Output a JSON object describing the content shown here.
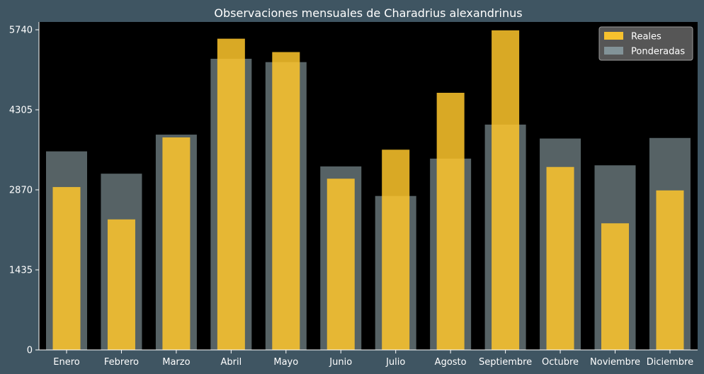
{
  "chart_data": {
    "type": "bar",
    "title": "Observaciones mensuales de Charadrius alexandrinus",
    "xlabel": "",
    "ylabel": "",
    "categories": [
      "Enero",
      "Febrero",
      "Marzo",
      "Abril",
      "Mayo",
      "Junio",
      "Julio",
      "Agosto",
      "Septiembre",
      "Octubre",
      "Noviembre",
      "Diciembre"
    ],
    "yticks": [
      0,
      1435,
      2870,
      4305,
      5740
    ],
    "ylim": [
      0,
      5880
    ],
    "grid": false,
    "legend_position": "top-right",
    "series": [
      {
        "name": "Ponderadas",
        "color": "#8a9ea3",
        "values": [
          3560,
          3160,
          3860,
          5220,
          5160,
          3290,
          2760,
          3430,
          4040,
          3790,
          3310,
          3800
        ]
      },
      {
        "name": "Reales",
        "color": "#ffc72c",
        "values": [
          2920,
          2340,
          3810,
          5580,
          5340,
          3070,
          3590,
          4610,
          5730,
          3280,
          2270,
          2860
        ]
      }
    ]
  }
}
